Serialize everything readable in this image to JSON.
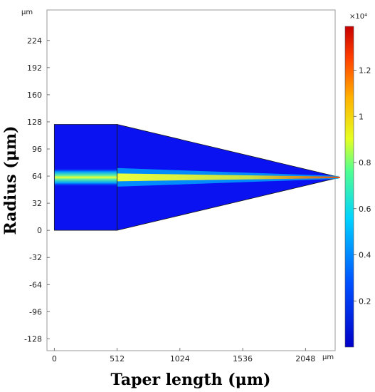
{
  "chart_data": {
    "type": "heatmap",
    "title": "",
    "xlabel": "Taper length (μm)",
    "ylabel": "Radius (μm)",
    "x_unit": "μm",
    "y_unit": "μm",
    "xlim": [
      -60,
      2290
    ],
    "ylim": [
      -142,
      260
    ],
    "x_ticks": [
      0,
      512,
      1024,
      1536,
      2048
    ],
    "y_ticks": [
      224,
      192,
      160,
      128,
      96,
      64,
      32,
      0,
      -32,
      -64,
      -96,
      -128
    ],
    "geometry": {
      "straight_section": {
        "x": [
          0,
          512
        ],
        "y": [
          0,
          125
        ]
      },
      "taper_section": {
        "x_start": 512,
        "x_end": 2330,
        "y_start": [
          0,
          125
        ],
        "tip_y": 62.5
      },
      "core_center_y": 62.5
    },
    "colorbar": {
      "multiplier": "×10⁴",
      "ticks": [
        0.2,
        0.4,
        0.6,
        0.8,
        1,
        1.2
      ],
      "tick_labels": [
        "0.2",
        "0.4",
        "0.6",
        "0.8",
        "1",
        "1.2"
      ],
      "min": 0,
      "max": 1.39
    },
    "colors": {
      "low": "#0a12f2",
      "mid": "#5fe060",
      "high": "#e3221a",
      "outline": "#1a1a1a"
    }
  }
}
